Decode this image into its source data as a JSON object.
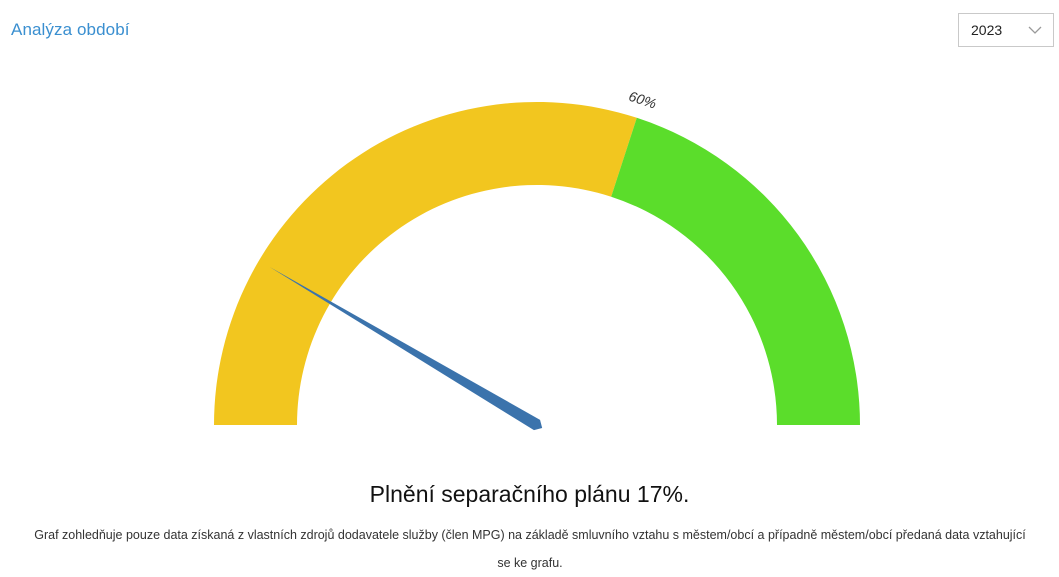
{
  "header": {
    "title": "Analýza období",
    "year_select": {
      "value": "2023",
      "icon": "chevron-down-icon"
    }
  },
  "chart_data": {
    "type": "gauge",
    "min": 0,
    "max": 100,
    "value": 17,
    "bands": [
      {
        "from": 0,
        "to": 60,
        "color": "#f2c61f"
      },
      {
        "from": 60,
        "to": 100,
        "color": "#5bdd2b"
      }
    ],
    "threshold_label": "60%",
    "needle_color": "#3b73ac"
  },
  "footer": {
    "headline": "Plnění separačního plánu 17%.",
    "note": "Graf zohledňuje pouze data získaná z vlastních zdrojů dodavatele služby (člen MPG) na základě smluvního vztahu s městem/obcí a případně městem/obcí předaná data vztahující se ke grafu."
  }
}
